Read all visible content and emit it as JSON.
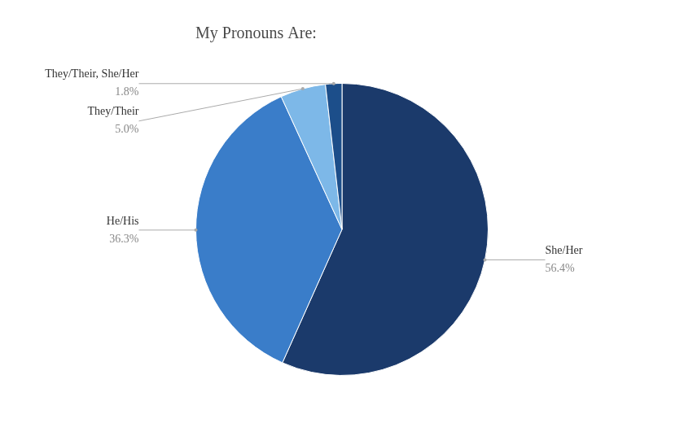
{
  "chart_data": {
    "type": "pie",
    "title": "My Pronouns Are:",
    "categories": [
      "She/Her",
      "He/His",
      "They/Their",
      "They/Their, She/Her"
    ],
    "values": [
      56.4,
      36.3,
      5.0,
      1.8
    ],
    "value_labels": [
      "56.4%",
      "36.3%",
      "5.0%",
      "1.8%"
    ],
    "colors": [
      "#1b3a6b",
      "#3a7dc9",
      "#7db8e8",
      "#1c4e8a"
    ],
    "data_labels": true,
    "legend": false
  }
}
